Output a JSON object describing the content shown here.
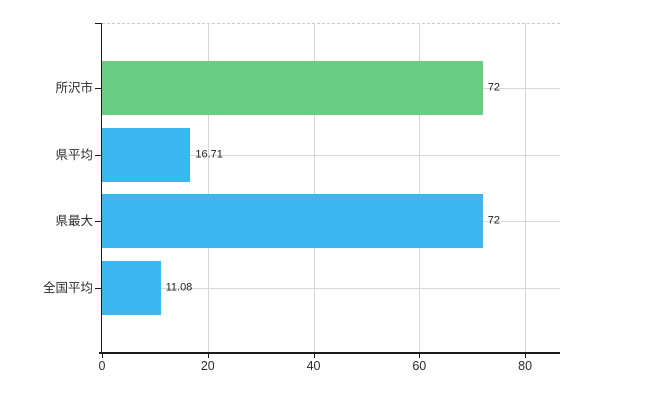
{
  "chart_data": {
    "type": "bar",
    "orientation": "horizontal",
    "title": "",
    "xlabel": "",
    "ylabel": "",
    "categories": [
      "所沢市",
      "県平均",
      "県最大",
      "全国平均"
    ],
    "values": [
      72,
      16.71,
      72,
      11.08
    ],
    "value_labels": [
      "72",
      "16.71",
      "72",
      "11.08"
    ],
    "bar_colors": [
      "#69ce83",
      "#3db7f0",
      "#3db7f0",
      "#3db7f0"
    ],
    "x_tick_labels": [
      "0",
      "20",
      "40",
      "60",
      "80"
    ],
    "x_tick_values": [
      0,
      20,
      40,
      60,
      80
    ],
    "xlim": [
      0,
      86.6
    ],
    "grid": true,
    "legend_position": "none",
    "colors": {
      "green_bar": "#69ce83",
      "blue_bar": "#3db7f0",
      "gridline": "#d7d7d7",
      "top_border_dashed": "#c9c9c9",
      "axis": "#1a1a1a",
      "label_text": "#2e2e2e"
    }
  }
}
